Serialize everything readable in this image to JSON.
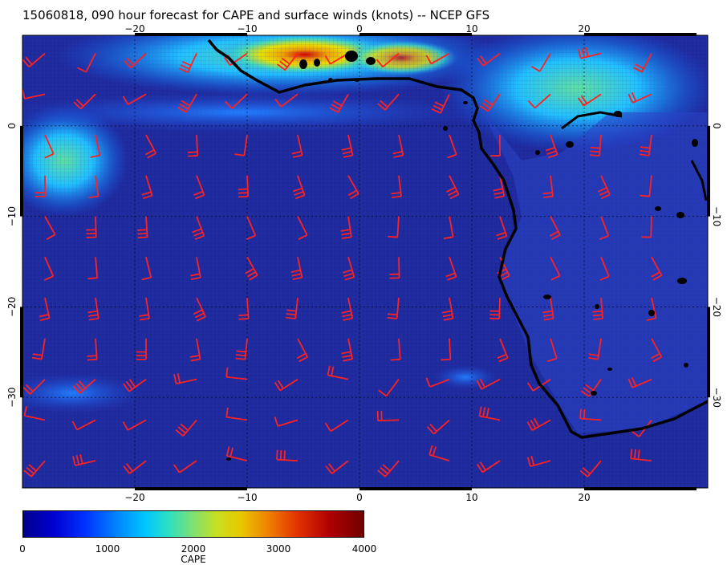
{
  "title": "15060818, 090 hour forecast for CAPE and surface winds (knots) -- NCEP GFS",
  "map": {
    "lon_range": [
      -30,
      31
    ],
    "lat_range": [
      -40,
      10
    ],
    "lon_ticks": [
      "-20",
      "-10",
      "0",
      "10",
      "20"
    ],
    "lat_ticks": [
      "0",
      "-10",
      "-20",
      "-30"
    ],
    "grid_lon": [
      -20,
      -10,
      0,
      10,
      20
    ],
    "grid_lat": [
      0,
      -10,
      -20,
      -30
    ],
    "ocean_color": "#1e2a9c",
    "land_low_color": "#2a44c8",
    "coast_color": "#000000",
    "barb_color": "#ff2020"
  },
  "colorbar": {
    "title": "CAPE",
    "labels": [
      "0",
      "1000",
      "2000",
      "3000",
      "4000"
    ],
    "min": 0,
    "max": 4000
  }
}
